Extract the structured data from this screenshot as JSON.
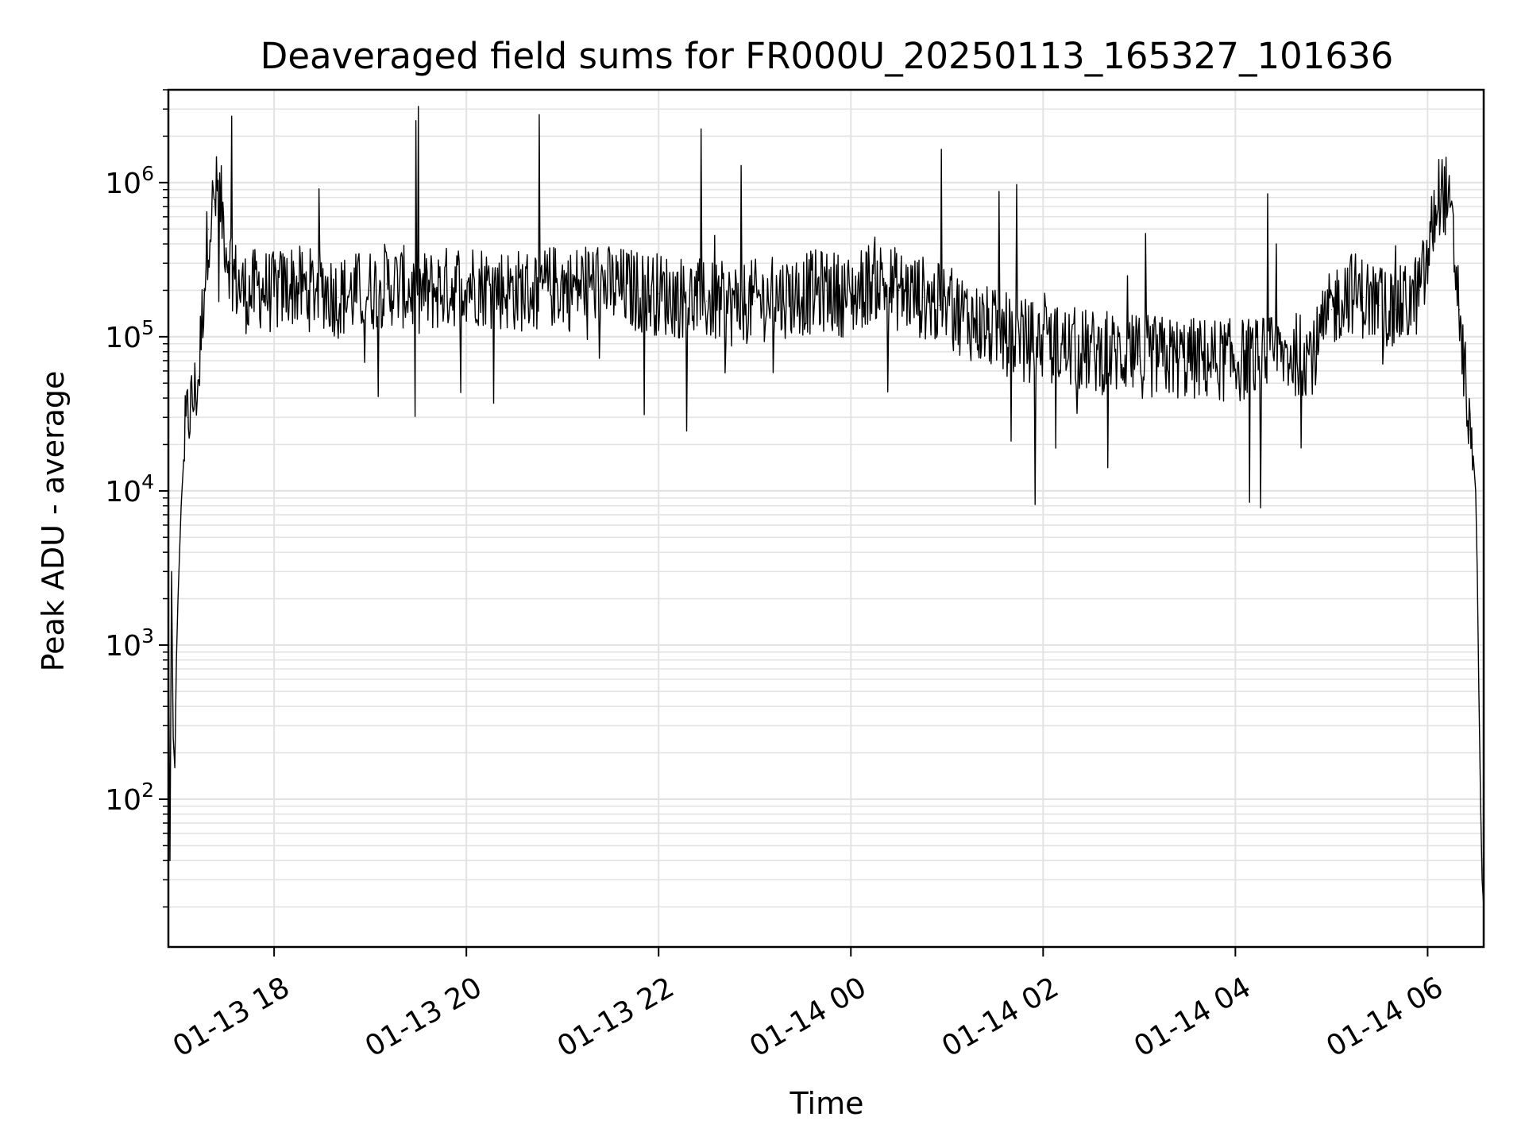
{
  "chart_data": {
    "type": "line",
    "title": "Deaveraged field sums for FR000U_20250113_165327_101636",
    "xlabel": "Time",
    "ylabel": "Peak ADU - average",
    "y_scale": "log",
    "ylim": [
      11,
      4000000
    ],
    "xlim": [
      "2025-01-13 16:54",
      "2025-01-14 06:35"
    ],
    "grid": true,
    "line_color": "#000000",
    "x_ticks": [
      {
        "value": "2025-01-13 18:00",
        "label": "01-13 18"
      },
      {
        "value": "2025-01-13 20:00",
        "label": "01-13 20"
      },
      {
        "value": "2025-01-13 22:00",
        "label": "01-13 22"
      },
      {
        "value": "2025-01-14 00:00",
        "label": "01-14 00"
      },
      {
        "value": "2025-01-14 02:00",
        "label": "01-14 02"
      },
      {
        "value": "2025-01-14 04:00",
        "label": "01-14 04"
      },
      {
        "value": "2025-01-14 06:00",
        "label": "01-14 06"
      }
    ],
    "y_ticks": [
      {
        "value": 100,
        "base": "10",
        "exp": "2"
      },
      {
        "value": 1000,
        "base": "10",
        "exp": "3"
      },
      {
        "value": 10000,
        "base": "10",
        "exp": "4"
      },
      {
        "value": 100000,
        "base": "10",
        "exp": "5"
      },
      {
        "value": 1000000,
        "base": "10",
        "exp": "6"
      }
    ],
    "series": [
      {
        "x": [
          "2025-01-13 16:54",
          "2025-01-13 16:55",
          "2025-01-13 16:56",
          "2025-01-13 16:57",
          "2025-01-13 16:58",
          "2025-01-13 16:59",
          "2025-01-13 17:00",
          "2025-01-13 17:02",
          "2025-01-13 17:04",
          "2025-01-13 17:06",
          "2025-01-13 17:08",
          "2025-01-13 17:10",
          "2025-01-13 17:13",
          "2025-01-13 17:16",
          "2025-01-13 17:19",
          "2025-01-13 17:22",
          "2025-01-13 17:25",
          "2025-01-13 17:28",
          "2025-01-13 17:30",
          "2025-01-13 17:33",
          "2025-01-13 17:36",
          "2025-01-13 17:40",
          "2025-01-13 17:45",
          "2025-01-13 17:50",
          "2025-01-13 17:55",
          "2025-01-13 18:00",
          "2025-01-13 18:10",
          "2025-01-13 18:20",
          "2025-01-13 18:30",
          "2025-01-13 18:40",
          "2025-01-13 18:50",
          "2025-01-13 19:00",
          "2025-01-13 19:10",
          "2025-01-13 19:20",
          "2025-01-13 19:30",
          "2025-01-13 19:40",
          "2025-01-13 19:50",
          "2025-01-13 20:00",
          "2025-01-13 20:15",
          "2025-01-13 20:30",
          "2025-01-13 20:45",
          "2025-01-13 21:00",
          "2025-01-13 21:05",
          "2025-01-13 21:15",
          "2025-01-13 21:30",
          "2025-01-13 21:45",
          "2025-01-13 22:00",
          "2025-01-13 22:15",
          "2025-01-13 22:30",
          "2025-01-13 22:45",
          "2025-01-13 23:00",
          "2025-01-13 23:15",
          "2025-01-13 23:30",
          "2025-01-13 23:45",
          "2025-01-14 00:00",
          "2025-01-14 00:10",
          "2025-01-14 00:15",
          "2025-01-14 00:30",
          "2025-01-14 00:45",
          "2025-01-14 00:55",
          "2025-01-14 01:10",
          "2025-01-14 01:20",
          "2025-01-14 01:40",
          "2025-01-14 02:00",
          "2025-01-14 02:30",
          "2025-01-14 03:00",
          "2025-01-14 03:30",
          "2025-01-14 04:00",
          "2025-01-14 04:30",
          "2025-01-14 04:50",
          "2025-01-14 05:00",
          "2025-01-14 05:10",
          "2025-01-14 05:20",
          "2025-01-14 05:30",
          "2025-01-14 05:40",
          "2025-01-14 05:50",
          "2025-01-14 05:55",
          "2025-01-14 06:00",
          "2025-01-14 06:04",
          "2025-01-14 06:08",
          "2025-01-14 06:12",
          "2025-01-14 06:16",
          "2025-01-14 06:20",
          "2025-01-14 06:23",
          "2025-01-14 06:26",
          "2025-01-14 06:28",
          "2025-01-14 06:30",
          "2025-01-14 06:31",
          "2025-01-14 06:32",
          "2025-01-14 06:33",
          "2025-01-14 06:34",
          "2025-01-14 06:35"
        ],
        "y": [
          1500,
          40,
          3000,
          250,
          160,
          800,
          2000,
          8000,
          20000,
          30000,
          35000,
          40000,
          55000,
          200000,
          500000,
          700000,
          900000,
          600000,
          400000,
          300000,
          230000,
          200000,
          190000,
          210000,
          200000,
          190000,
          220000,
          200000,
          210000,
          180000,
          190000,
          200000,
          220000,
          210000,
          190000,
          200000,
          210000,
          230000,
          210000,
          200000,
          200000,
          220000,
          200000,
          230000,
          210000,
          200000,
          190000,
          180000,
          170000,
          160000,
          170000,
          180000,
          190000,
          200000,
          180000,
          220000,
          240000,
          200000,
          180000,
          160000,
          140000,
          120000,
          100000,
          90000,
          80000,
          75000,
          72000,
          70000,
          75000,
          80000,
          150000,
          200000,
          180000,
          160000,
          150000,
          170000,
          200000,
          300000,
          600000,
          900000,
          800000,
          400000,
          150000,
          50000,
          25000,
          20000,
          10000,
          3000,
          500,
          100,
          30,
          20
        ]
      }
    ]
  }
}
